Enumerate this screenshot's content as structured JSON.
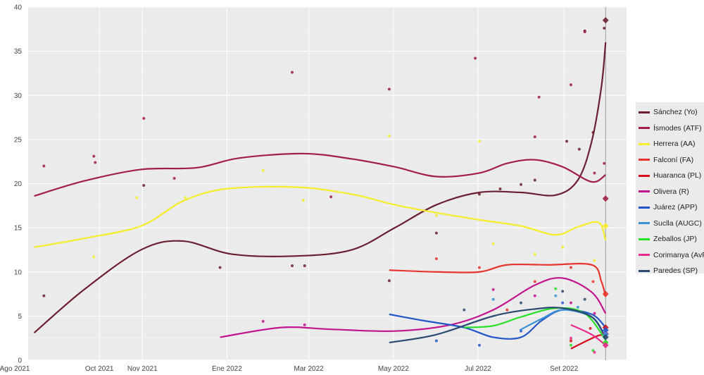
{
  "chart_data": {
    "type": "line",
    "title": "",
    "xlabel": "",
    "ylabel": "",
    "ylim": [
      0,
      40
    ],
    "xlim": [
      "2021-07-22",
      "2022-10-15"
    ],
    "grid": true,
    "legend_position": "right",
    "yticks": [
      "0",
      "5",
      "10",
      "15",
      "20",
      "25",
      "30",
      "35",
      "40"
    ],
    "xticks": [
      {
        "date": "2021-08-01",
        "label": "Ago 2021"
      },
      {
        "date": "2021-10-01",
        "label": "Oct 2021"
      },
      {
        "date": "2021-11-01",
        "label": "Nov 2021"
      },
      {
        "date": "2022-01-01",
        "label": "Ene 2022"
      },
      {
        "date": "2022-03-01",
        "label": "Mar 2022"
      },
      {
        "date": "2022-05-01",
        "label": "May 2022"
      },
      {
        "date": "2022-07-01",
        "label": "Jul 2022"
      },
      {
        "date": "2022-09-01",
        "label": "Set 2022"
      }
    ],
    "election_date": "2022-10-01",
    "series": [
      {
        "name": "Sánchez (Yo)",
        "color": "#6b2030",
        "trend": [
          [
            "2021-08-15",
            3.1
          ],
          [
            "2021-09-20",
            8
          ],
          [
            "2021-10-31",
            12.5
          ],
          [
            "2021-11-30",
            13.5
          ],
          [
            "2022-01-05",
            12
          ],
          [
            "2022-02-20",
            11.8
          ],
          [
            "2022-04-01",
            12.5
          ],
          [
            "2022-05-02",
            15
          ],
          [
            "2022-06-01",
            17.6
          ],
          [
            "2022-07-02",
            19
          ],
          [
            "2022-08-01",
            19
          ],
          [
            "2022-08-26",
            18.7
          ],
          [
            "2022-09-11",
            20.4
          ],
          [
            "2022-09-21",
            24.8
          ],
          [
            "2022-09-28",
            31
          ],
          [
            "2022-10-01",
            36
          ]
        ],
        "points": [
          [
            "2021-08-22",
            7.3
          ],
          [
            "2021-11-02",
            19.8
          ],
          [
            "2021-12-27",
            10.5
          ],
          [
            "2022-02-17",
            10.7
          ],
          [
            "2022-02-26",
            10.7
          ],
          [
            "2022-04-28",
            9.0
          ],
          [
            "2022-06-01",
            14.4
          ],
          [
            "2022-07-02",
            18.8
          ],
          [
            "2022-07-17",
            19.4
          ],
          [
            "2022-08-01",
            19.9
          ],
          [
            "2022-08-11",
            20.4
          ],
          [
            "2022-09-03",
            24.8
          ],
          [
            "2022-09-12",
            23.9
          ],
          [
            "2022-09-22",
            25.8
          ],
          [
            "2022-09-16",
            37.3
          ],
          [
            "2022-09-30",
            37.6
          ]
        ],
        "final": 38.5
      },
      {
        "name": "Ísmodes (ATF)",
        "color": "#a21f45",
        "trend": [
          [
            "2021-08-15",
            18.6
          ],
          [
            "2021-09-20",
            20.3
          ],
          [
            "2021-10-31",
            21.6
          ],
          [
            "2021-12-10",
            21.8
          ],
          [
            "2022-01-10",
            22.9
          ],
          [
            "2022-02-25",
            23.4
          ],
          [
            "2022-04-01",
            22.8
          ],
          [
            "2022-05-02",
            21.9
          ],
          [
            "2022-06-01",
            20.8
          ],
          [
            "2022-07-02",
            21.2
          ],
          [
            "2022-07-22",
            22.3
          ],
          [
            "2022-08-11",
            22.7
          ],
          [
            "2022-08-31",
            21.9
          ],
          [
            "2022-09-21",
            20.2
          ],
          [
            "2022-10-01",
            21
          ]
        ],
        "points": [
          [
            "2021-08-22",
            22
          ],
          [
            "2021-09-27",
            23.1
          ],
          [
            "2021-09-28",
            22.4
          ],
          [
            "2021-11-02",
            27.4
          ],
          [
            "2021-11-24",
            20.6
          ],
          [
            "2022-02-17",
            32.6
          ],
          [
            "2022-03-17",
            18.5
          ],
          [
            "2022-04-28",
            30.7
          ],
          [
            "2022-06-29",
            34.2
          ],
          [
            "2022-08-14",
            29.8
          ],
          [
            "2022-09-06",
            31.2
          ],
          [
            "2022-09-16",
            37.2
          ],
          [
            "2022-09-30",
            22.3
          ],
          [
            "2022-09-23",
            21.2
          ],
          [
            "2022-08-11",
            25.3
          ]
        ],
        "final": 18.3
      },
      {
        "name": "Herrera (AA)",
        "color": "#f5ec2a",
        "trend": [
          [
            "2021-08-15",
            12.8
          ],
          [
            "2021-09-20",
            13.8
          ],
          [
            "2021-10-31",
            15.2
          ],
          [
            "2021-11-30",
            18
          ],
          [
            "2021-12-31",
            19.4
          ],
          [
            "2022-02-20",
            19.6
          ],
          [
            "2022-04-01",
            18.8
          ],
          [
            "2022-05-02",
            17.6
          ],
          [
            "2022-06-01",
            16.7
          ],
          [
            "2022-07-02",
            15.9
          ],
          [
            "2022-08-01",
            15.2
          ],
          [
            "2022-08-26",
            14.2
          ],
          [
            "2022-09-11",
            15.1
          ],
          [
            "2022-09-26",
            15.6
          ],
          [
            "2022-10-01",
            13.6
          ]
        ],
        "points": [
          [
            "2021-09-27",
            11.7
          ],
          [
            "2021-10-28",
            18.4
          ],
          [
            "2021-12-02",
            18.4
          ],
          [
            "2022-01-27",
            21.5
          ],
          [
            "2022-02-25",
            18.1
          ],
          [
            "2022-04-28",
            25.4
          ],
          [
            "2022-07-02",
            24.8
          ],
          [
            "2022-06-01",
            16.4
          ],
          [
            "2022-07-12",
            13.2
          ],
          [
            "2022-08-11",
            12
          ],
          [
            "2022-08-31",
            12.8
          ],
          [
            "2022-09-23",
            11.3
          ]
        ],
        "final": 15.2
      },
      {
        "name": "Falconí (FA)",
        "color": "#e8342e",
        "trend": [
          [
            "2022-04-28",
            10.2
          ],
          [
            "2022-06-01",
            10
          ],
          [
            "2022-07-02",
            10
          ],
          [
            "2022-07-22",
            10.8
          ],
          [
            "2022-08-21",
            10.8
          ],
          [
            "2022-09-21",
            10.8
          ],
          [
            "2022-09-28",
            8.9
          ],
          [
            "2022-10-01",
            7.2
          ]
        ],
        "points": [
          [
            "2022-06-01",
            11.5
          ],
          [
            "2022-07-02",
            10.5
          ],
          [
            "2022-07-22",
            5.7
          ],
          [
            "2022-08-11",
            8.9
          ],
          [
            "2022-09-06",
            10.5
          ],
          [
            "2022-09-22",
            8.9
          ]
        ],
        "final": 7.5
      },
      {
        "name": "Huaranca (PL)",
        "color": "#d5101c",
        "trend": [
          [
            "2022-09-06",
            1.3
          ],
          [
            "2022-09-26",
            2.8
          ],
          [
            "2022-10-01",
            2.5
          ]
        ],
        "points": [
          [
            "2022-09-06",
            2.2
          ],
          [
            "2022-09-20",
            3.6
          ]
        ],
        "final": 3.7
      },
      {
        "name": "Olivera (R)",
        "color": "#c2168e",
        "trend": [
          [
            "2021-12-27",
            2.6
          ],
          [
            "2022-02-09",
            3.7
          ],
          [
            "2022-03-17",
            3.5
          ],
          [
            "2022-05-02",
            3.3
          ],
          [
            "2022-06-11",
            4
          ],
          [
            "2022-07-12",
            5.7
          ],
          [
            "2022-08-11",
            8.5
          ],
          [
            "2022-08-31",
            9.3
          ],
          [
            "2022-09-21",
            7.7
          ],
          [
            "2022-10-01",
            5.3
          ]
        ],
        "points": [
          [
            "2022-01-27",
            4.4
          ],
          [
            "2022-02-26",
            4
          ],
          [
            "2022-07-12",
            8
          ],
          [
            "2022-08-11",
            7.3
          ],
          [
            "2022-09-06",
            6.5
          ],
          [
            "2022-09-23",
            5.3
          ]
        ],
        "final": 3.0
      },
      {
        "name": "Juárez (APP)",
        "color": "#2356c8",
        "trend": [
          [
            "2022-04-28",
            5.2
          ],
          [
            "2022-05-22",
            4.5
          ],
          [
            "2022-06-21",
            3.7
          ],
          [
            "2022-07-12",
            2.6
          ],
          [
            "2022-08-01",
            2.6
          ],
          [
            "2022-08-16",
            4.5
          ],
          [
            "2022-08-31",
            5.7
          ],
          [
            "2022-09-21",
            5.2
          ],
          [
            "2022-10-01",
            3.7
          ]
        ],
        "points": [
          [
            "2022-06-01",
            2.2
          ],
          [
            "2022-07-02",
            1.7
          ],
          [
            "2022-08-01",
            3.3
          ],
          [
            "2022-08-31",
            6.5
          ]
        ],
        "final": 3.4
      },
      {
        "name": "Suclla (AUGC)",
        "color": "#3a92d4",
        "trend": [
          [
            "2022-07-31",
            3.4
          ],
          [
            "2022-08-16",
            4.7
          ],
          [
            "2022-08-31",
            5.7
          ],
          [
            "2022-09-21",
            4.9
          ],
          [
            "2022-09-30",
            2.9
          ]
        ],
        "points": [
          [
            "2022-07-12",
            6.9
          ],
          [
            "2022-08-26",
            7.3
          ],
          [
            "2022-09-11",
            6
          ]
        ],
        "final": 2.9
      },
      {
        "name": "Zeballos (JP)",
        "color": "#26e026",
        "trend": [
          [
            "2022-06-21",
            3.7
          ],
          [
            "2022-07-12",
            3.9
          ],
          [
            "2022-08-01",
            4.9
          ],
          [
            "2022-08-26",
            5.9
          ],
          [
            "2022-09-16",
            5.3
          ],
          [
            "2022-10-01",
            2.3
          ]
        ],
        "points": [
          [
            "2022-08-26",
            8.1
          ],
          [
            "2022-09-06",
            1.7
          ],
          [
            "2022-09-22",
            1.1
          ]
        ],
        "final": 2.0
      },
      {
        "name": "Corimanya (AvP)",
        "color": "#ea2a8c",
        "trend": [
          [
            "2022-09-06",
            4
          ],
          [
            "2022-09-21",
            2.9
          ],
          [
            "2022-10-01",
            1.7
          ]
        ],
        "points": [
          [
            "2022-09-06",
            2.5
          ],
          [
            "2022-09-23",
            0.9
          ]
        ],
        "final": 1.7
      },
      {
        "name": "Paredes (SP)",
        "color": "#2c4a70",
        "trend": [
          [
            "2022-04-28",
            2
          ],
          [
            "2022-06-01",
            2.9
          ],
          [
            "2022-07-12",
            5
          ],
          [
            "2022-08-11",
            5.8
          ],
          [
            "2022-08-31",
            5.9
          ],
          [
            "2022-09-21",
            4.9
          ],
          [
            "2022-10-01",
            2.5
          ]
        ],
        "points": [
          [
            "2022-06-21",
            5.7
          ],
          [
            "2022-08-01",
            6.5
          ],
          [
            "2022-08-31",
            7.8
          ],
          [
            "2022-09-16",
            6.9
          ]
        ],
        "final": 2.6
      }
    ]
  }
}
